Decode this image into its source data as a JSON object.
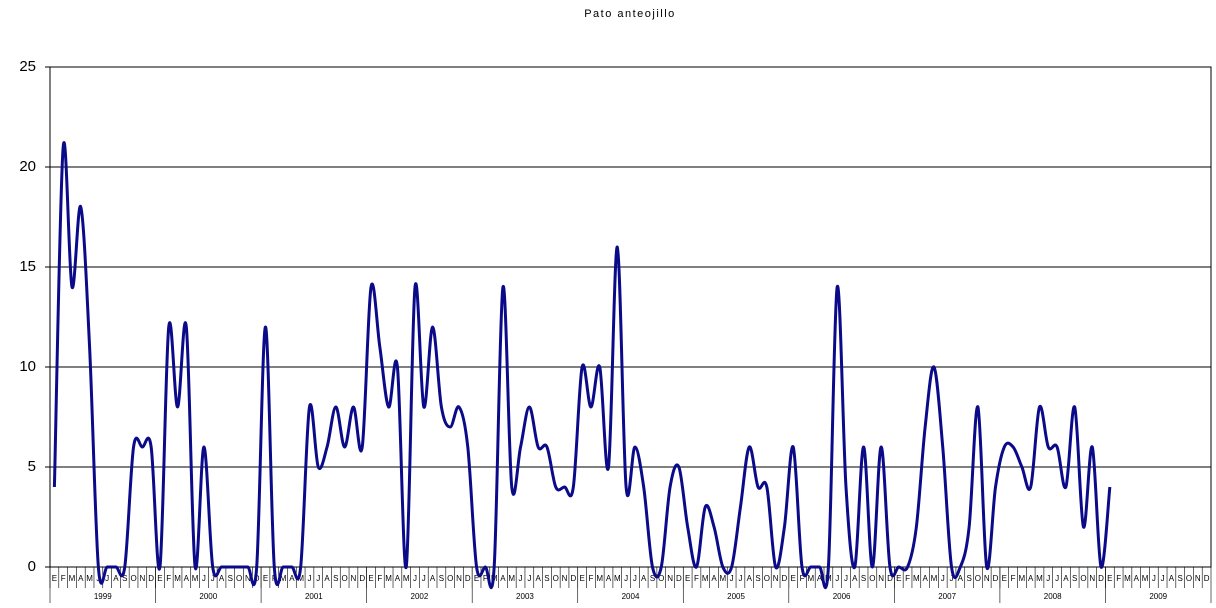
{
  "chart_data": {
    "type": "line",
    "title": "Pato anteojillo",
    "categories": [
      "E",
      "F",
      "M",
      "A",
      "M",
      "J",
      "J",
      "A",
      "S",
      "O",
      "N",
      "D",
      "E",
      "F",
      "M",
      "A",
      "M",
      "J",
      "J",
      "A",
      "S",
      "O",
      "N",
      "D",
      "E",
      "F",
      "M",
      "A",
      "M",
      "J",
      "J",
      "A",
      "S",
      "O",
      "N",
      "D",
      "E",
      "F",
      "M",
      "A",
      "M",
      "J",
      "J",
      "A",
      "S",
      "O",
      "N",
      "D",
      "E",
      "F",
      "M",
      "A",
      "M",
      "J",
      "J",
      "A",
      "S",
      "O",
      "N",
      "D",
      "E",
      "F",
      "M",
      "A",
      "M",
      "J",
      "J",
      "A",
      "S",
      "O",
      "N",
      "D",
      "E",
      "F",
      "M",
      "A",
      "M",
      "J",
      "J",
      "A",
      "S",
      "O",
      "N",
      "D",
      "E",
      "F",
      "M",
      "A",
      "M",
      "J",
      "J",
      "A",
      "S",
      "O",
      "N",
      "D",
      "E",
      "F",
      "M",
      "A",
      "M",
      "J",
      "J",
      "A",
      "S",
      "O",
      "N",
      "D",
      "E",
      "F",
      "M",
      "A",
      "M",
      "J",
      "J",
      "A",
      "S",
      "O",
      "N",
      "D",
      "E",
      "F",
      "M",
      "A",
      "M",
      "J",
      "J",
      "A",
      "S",
      "O",
      "N",
      "D"
    ],
    "groups": [
      "1999",
      "2000",
      "2001",
      "2002",
      "2003",
      "2004",
      "2005",
      "2006",
      "2007",
      "2008",
      "2009"
    ],
    "series": [
      {
        "name": "Pato anteojillo",
        "color": "#0b0b8a",
        "values": [
          4,
          21,
          14,
          18,
          11,
          0,
          0,
          0,
          0,
          6,
          6,
          6,
          0,
          12,
          8,
          12,
          0,
          6,
          0,
          0,
          0,
          0,
          0,
          0,
          12,
          0,
          0,
          0,
          0,
          8,
          5,
          6,
          8,
          6,
          8,
          6,
          14,
          11,
          8,
          10,
          0,
          14,
          8,
          12,
          8,
          7,
          8,
          6,
          0,
          0,
          0,
          14,
          4,
          6,
          8,
          6,
          6,
          4,
          4,
          4,
          10,
          8,
          10,
          5,
          16,
          4,
          6,
          4,
          0,
          0,
          4,
          5,
          2,
          0,
          3,
          2,
          0,
          0,
          3,
          6,
          4,
          4,
          0,
          2,
          6,
          0,
          0,
          0,
          0,
          14,
          4,
          0,
          6,
          0,
          6,
          0,
          0,
          0,
          2,
          7,
          10,
          6,
          0,
          0,
          2,
          8,
          0,
          4,
          6,
          6,
          5,
          4,
          8,
          6,
          6,
          4,
          8,
          2,
          6,
          0,
          4,
          null,
          null,
          null,
          null,
          null,
          null,
          null,
          null,
          null,
          null,
          null
        ]
      }
    ],
    "ylim": [
      0,
      25
    ],
    "yticks": [
      0,
      5,
      10,
      15,
      20,
      25
    ],
    "grid": true
  }
}
